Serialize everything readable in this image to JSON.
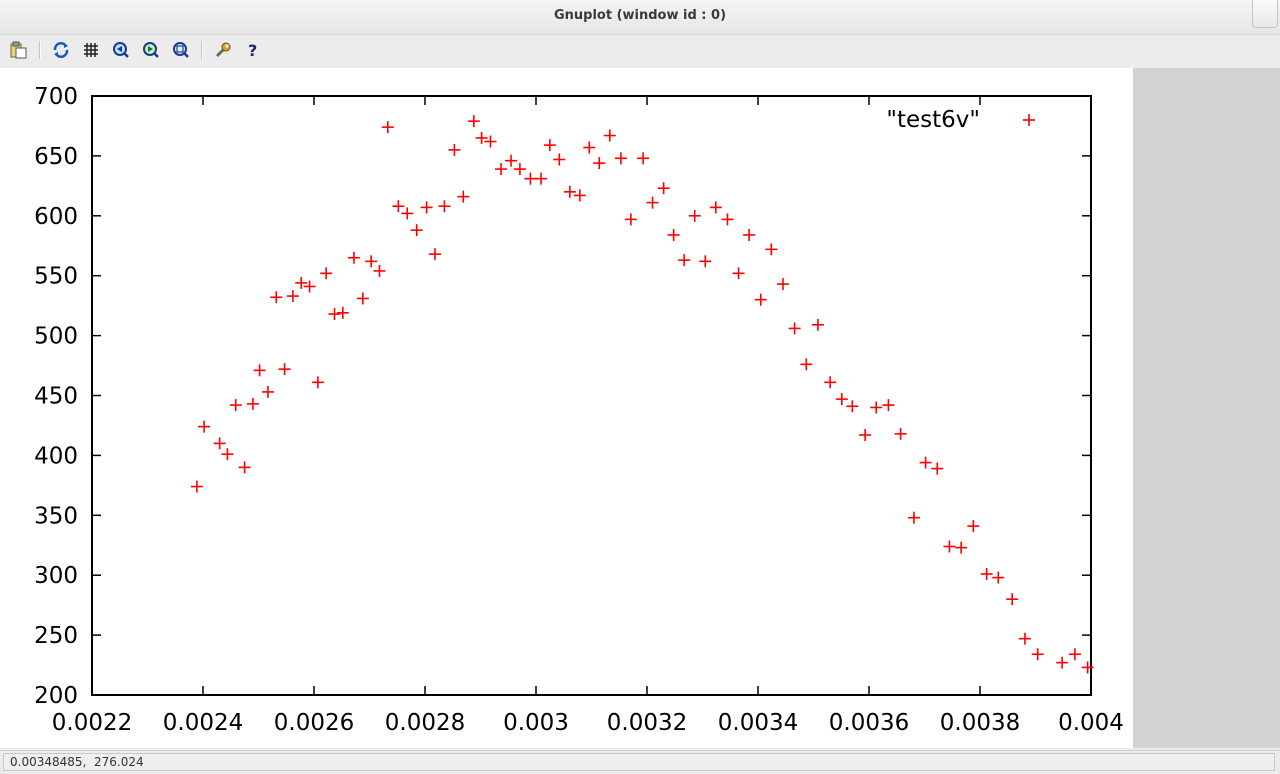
{
  "window": {
    "title": "Gnuplot (window id : 0)"
  },
  "toolbar": {
    "buttons": [
      {
        "name": "copy-clipboard-icon"
      },
      {
        "name": "replot-icon"
      },
      {
        "name": "grid-icon"
      },
      {
        "name": "zoom-previous-icon"
      },
      {
        "name": "zoom-next-icon"
      },
      {
        "name": "autoscale-icon"
      },
      {
        "name": "settings-icon"
      },
      {
        "name": "help-icon"
      }
    ]
  },
  "status": {
    "coordinates": "0.00348485,  276.024"
  },
  "chart_data": {
    "type": "scatter",
    "xlim": [
      0.0022,
      0.004
    ],
    "ylim": [
      200,
      700
    ],
    "x_ticks": [
      "0.0022",
      "0.0024",
      "0.0026",
      "0.0028",
      "0.003",
      "0.0032",
      "0.0034",
      "0.0036",
      "0.0038",
      "0.004"
    ],
    "y_ticks": [
      "200",
      "250",
      "300",
      "350",
      "400",
      "450",
      "500",
      "550",
      "600",
      "650",
      "700"
    ],
    "legend_position": "top-right",
    "grid": false,
    "series": [
      {
        "name": "\"test6v\"",
        "marker": "+",
        "color": "#ff0000",
        "points": [
          [
            0.002389,
            374
          ],
          [
            0.002402,
            424
          ],
          [
            0.00243,
            410
          ],
          [
            0.002444,
            401
          ],
          [
            0.002459,
            442
          ],
          [
            0.002475,
            390
          ],
          [
            0.00249,
            443
          ],
          [
            0.002502,
            471
          ],
          [
            0.002517,
            453
          ],
          [
            0.002532,
            532
          ],
          [
            0.002547,
            472
          ],
          [
            0.002562,
            533
          ],
          [
            0.002577,
            544
          ],
          [
            0.002592,
            541
          ],
          [
            0.002607,
            461
          ],
          [
            0.002622,
            552
          ],
          [
            0.002637,
            518
          ],
          [
            0.002652,
            519
          ],
          [
            0.002672,
            565
          ],
          [
            0.002688,
            531
          ],
          [
            0.002703,
            562
          ],
          [
            0.002718,
            554
          ],
          [
            0.002733,
            674
          ],
          [
            0.002752,
            608
          ],
          [
            0.002768,
            602
          ],
          [
            0.002785,
            588
          ],
          [
            0.002803,
            607
          ],
          [
            0.002818,
            568
          ],
          [
            0.002835,
            608
          ],
          [
            0.002853,
            655
          ],
          [
            0.002869,
            616
          ],
          [
            0.002888,
            679
          ],
          [
            0.002902,
            665
          ],
          [
            0.002918,
            662
          ],
          [
            0.002937,
            639
          ],
          [
            0.002955,
            646
          ],
          [
            0.002971,
            639
          ],
          [
            0.00299,
            631
          ],
          [
            0.003009,
            631
          ],
          [
            0.003025,
            659
          ],
          [
            0.003042,
            647
          ],
          [
            0.003061,
            620
          ],
          [
            0.003079,
            617
          ],
          [
            0.003096,
            657
          ],
          [
            0.003114,
            644
          ],
          [
            0.003133,
            667
          ],
          [
            0.003153,
            648
          ],
          [
            0.003171,
            597
          ],
          [
            0.003193,
            648
          ],
          [
            0.00321,
            611
          ],
          [
            0.00323,
            623
          ],
          [
            0.003248,
            584
          ],
          [
            0.003267,
            563
          ],
          [
            0.003286,
            600
          ],
          [
            0.003305,
            562
          ],
          [
            0.003324,
            607
          ],
          [
            0.003345,
            597
          ],
          [
            0.003365,
            552
          ],
          [
            0.003384,
            584
          ],
          [
            0.003405,
            530
          ],
          [
            0.003424,
            572
          ],
          [
            0.003445,
            543
          ],
          [
            0.003466,
            506
          ],
          [
            0.003487,
            476
          ],
          [
            0.003508,
            509
          ],
          [
            0.00353,
            461
          ],
          [
            0.003551,
            447
          ],
          [
            0.00357,
            441
          ],
          [
            0.003593,
            417
          ],
          [
            0.003613,
            440
          ],
          [
            0.003635,
            442
          ],
          [
            0.003657,
            418
          ],
          [
            0.003681,
            348
          ],
          [
            0.003702,
            394
          ],
          [
            0.003723,
            389
          ],
          [
            0.003745,
            324
          ],
          [
            0.003766,
            323
          ],
          [
            0.003788,
            341
          ],
          [
            0.003812,
            301
          ],
          [
            0.003833,
            298
          ],
          [
            0.003858,
            280
          ],
          [
            0.003881,
            247
          ],
          [
            0.003904,
            234
          ],
          [
            0.003948,
            227
          ],
          [
            0.003971,
            234
          ],
          [
            0.003994,
            223
          ]
        ]
      }
    ]
  }
}
